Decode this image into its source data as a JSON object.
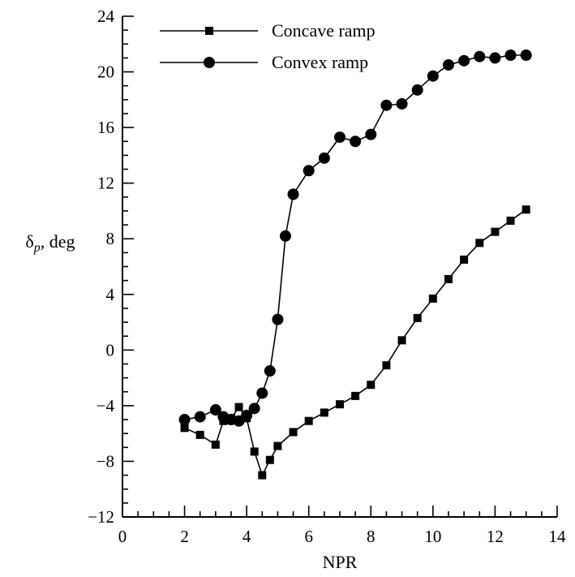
{
  "chart_data": {
    "type": "line",
    "xlabel": "NPR",
    "ylabel": "δp, deg",
    "ylabel_main": "δ",
    "ylabel_sub": "p",
    "ylabel_rest": ", deg",
    "xlim": [
      0,
      14
    ],
    "ylim": [
      -12,
      24
    ],
    "xticks": [
      0,
      2,
      4,
      6,
      8,
      10,
      12,
      14
    ],
    "xtick_labels": [
      "0",
      "2",
      "4",
      "6",
      "8",
      "10",
      "12",
      "14"
    ],
    "yticks": [
      -12,
      -8,
      -4,
      0,
      4,
      8,
      12,
      16,
      20,
      24
    ],
    "ytick_labels": [
      "−12",
      "−8",
      "−4",
      "0",
      "4",
      "8",
      "12",
      "16",
      "20",
      "24"
    ],
    "grid": false,
    "legend_position": "top-left",
    "series": [
      {
        "name": "Concave ramp",
        "marker": "square",
        "color": "#000000",
        "x": [
          2.0,
          2.5,
          3.0,
          3.25,
          3.5,
          3.75,
          4.0,
          4.25,
          4.5,
          4.75,
          5.0,
          5.5,
          6.0,
          6.5,
          7.0,
          7.5,
          8.0,
          8.5,
          9.0,
          9.5,
          10.0,
          10.5,
          11.0,
          11.5,
          12.0,
          12.5,
          13.0
        ],
        "y": [
          -5.6,
          -6.1,
          -6.8,
          -5.1,
          -4.9,
          -4.1,
          -4.9,
          -7.3,
          -9.0,
          -7.9,
          -6.9,
          -5.9,
          -5.1,
          -4.5,
          -3.9,
          -3.3,
          -2.5,
          -1.1,
          0.7,
          2.3,
          3.7,
          5.1,
          6.5,
          7.7,
          8.5,
          9.3,
          10.1
        ]
      },
      {
        "name": "Convex ramp",
        "marker": "circle",
        "color": "#000000",
        "x": [
          2.0,
          2.5,
          3.0,
          3.25,
          3.5,
          3.75,
          4.0,
          4.25,
          4.5,
          4.75,
          5.0,
          5.25,
          5.5,
          6.0,
          6.5,
          7.0,
          7.5,
          8.0,
          8.5,
          9.0,
          9.5,
          10.0,
          10.5,
          11.0,
          11.5,
          12.0,
          12.5,
          13.0
        ],
        "y": [
          -5.0,
          -4.8,
          -4.3,
          -4.8,
          -5.0,
          -5.1,
          -4.7,
          -4.2,
          -3.1,
          -1.5,
          2.2,
          8.2,
          11.2,
          12.9,
          13.8,
          15.3,
          15.0,
          15.5,
          17.6,
          17.7,
          18.7,
          19.7,
          20.5,
          20.8,
          21.1,
          21.0,
          21.2,
          21.2
        ]
      }
    ]
  }
}
